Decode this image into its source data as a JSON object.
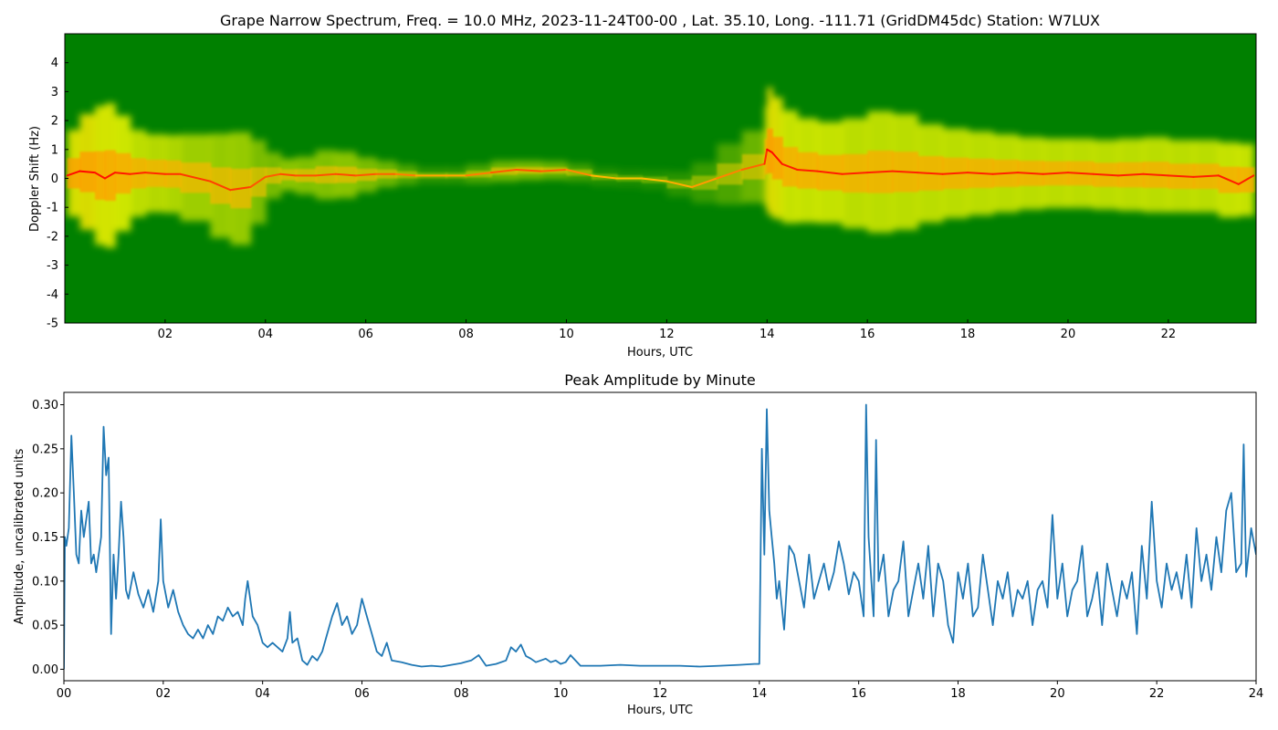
{
  "chart_data": [
    {
      "type": "heatmap",
      "title": "Grape Narrow Spectrum, Freq. = 10.0 MHz, 2023-11-24T00-00 , Lat.  35.10, Long. -111.71 (GridDM45dc) Station: W7LUX",
      "xlabel": "Hours, UTC",
      "ylabel": "Doppler Shift (Hz)",
      "xlim": [
        0,
        23.75
      ],
      "ylim": [
        -5,
        5
      ],
      "x_ticks": [
        2,
        4,
        6,
        8,
        10,
        12,
        14,
        16,
        18,
        20,
        22
      ],
      "x_tick_labels": [
        "02",
        "04",
        "06",
        "08",
        "10",
        "12",
        "14",
        "16",
        "18",
        "20",
        "22"
      ],
      "y_ticks": [
        -5,
        -4,
        -3,
        -2,
        -1,
        0,
        1,
        2,
        3,
        4
      ],
      "y_tick_labels": [
        "-5",
        "-4",
        "-3",
        "-2",
        "-1",
        "0",
        "1",
        "2",
        "3",
        "4"
      ],
      "colormap": [
        "#008000",
        "#ffff00",
        "#ff0000"
      ],
      "background_color": "#008000",
      "tone_trace": {
        "x": [
          0.05,
          0.3,
          0.6,
          0.8,
          1.0,
          1.3,
          1.6,
          2.0,
          2.3,
          2.9,
          3.3,
          3.7,
          4.0,
          4.3,
          4.6,
          5.0,
          5.4,
          5.8,
          6.2,
          6.6,
          7.0,
          7.6,
          8.0,
          8.5,
          9.0,
          9.5,
          10.0,
          10.5,
          11.0,
          11.5,
          12.0,
          12.5,
          13.0,
          13.5,
          13.95,
          14.0,
          14.1,
          14.3,
          14.6,
          15.0,
          15.5,
          16.0,
          16.5,
          17.0,
          17.5,
          18.0,
          18.5,
          19.0,
          19.5,
          20.0,
          20.5,
          21.0,
          21.5,
          22.0,
          22.5,
          23.0,
          23.4,
          23.7
        ],
        "y": [
          0.1,
          0.25,
          0.2,
          0.0,
          0.2,
          0.15,
          0.2,
          0.15,
          0.15,
          -0.1,
          -0.4,
          -0.3,
          0.05,
          0.15,
          0.1,
          0.1,
          0.15,
          0.1,
          0.15,
          0.15,
          0.1,
          0.1,
          0.1,
          0.2,
          0.3,
          0.25,
          0.3,
          0.1,
          0.0,
          0.0,
          -0.1,
          -0.3,
          0.0,
          0.3,
          0.5,
          1.0,
          0.9,
          0.5,
          0.3,
          0.25,
          0.15,
          0.2,
          0.25,
          0.2,
          0.15,
          0.2,
          0.15,
          0.2,
          0.15,
          0.2,
          0.15,
          0.1,
          0.15,
          0.1,
          0.05,
          0.1,
          -0.2,
          0.1
        ],
        "intensity": [
          0.9,
          1.0,
          0.95,
          0.9,
          0.95,
          0.85,
          0.85,
          0.8,
          0.8,
          0.7,
          0.75,
          0.7,
          0.55,
          0.65,
          0.7,
          0.6,
          0.7,
          0.65,
          0.6,
          0.55,
          0.35,
          0.2,
          0.35,
          0.55,
          0.65,
          0.6,
          0.55,
          0.25,
          0.15,
          0.15,
          0.2,
          0.3,
          0.35,
          0.5,
          0.6,
          1.0,
          1.0,
          0.9,
          0.85,
          0.9,
          0.85,
          0.85,
          0.85,
          0.85,
          0.85,
          0.85,
          0.85,
          0.85,
          0.85,
          0.85,
          0.85,
          0.85,
          0.85,
          0.85,
          0.85,
          0.85,
          0.9,
          0.85
        ],
        "spread_hz": [
          1.2,
          1.8,
          2.2,
          2.6,
          2.4,
          1.6,
          1.4,
          1.3,
          1.4,
          1.6,
          2.0,
          1.9,
          1.0,
          0.6,
          0.5,
          0.8,
          0.9,
          0.7,
          0.5,
          0.4,
          0.3,
          0.25,
          0.3,
          0.35,
          0.35,
          0.3,
          0.3,
          0.3,
          0.3,
          0.3,
          0.35,
          0.5,
          0.9,
          1.2,
          1.3,
          2.2,
          2.2,
          2.0,
          1.9,
          1.7,
          1.8,
          2.0,
          2.2,
          1.8,
          1.6,
          1.5,
          1.4,
          1.3,
          1.2,
          1.2,
          1.2,
          1.2,
          1.3,
          1.3,
          1.2,
          1.3,
          1.3,
          1.2
        ]
      }
    },
    {
      "type": "line",
      "title": "Peak Amplitude by Minute",
      "xlabel": "Hours, UTC",
      "ylabel": "Amplitude, uncalibrated units",
      "xlim": [
        0,
        24
      ],
      "ylim": [
        -0.013,
        0.314
      ],
      "x_ticks": [
        0,
        2,
        4,
        6,
        8,
        10,
        12,
        14,
        16,
        18,
        20,
        22,
        24
      ],
      "x_tick_labels": [
        "00",
        "02",
        "04",
        "06",
        "08",
        "10",
        "12",
        "14",
        "16",
        "18",
        "20",
        "22",
        "24"
      ],
      "y_ticks": [
        0.0,
        0.05,
        0.1,
        0.15,
        0.2,
        0.25,
        0.3
      ],
      "y_tick_labels": [
        "0.00",
        "0.05",
        "0.10",
        "0.15",
        "0.20",
        "0.25",
        "0.30"
      ],
      "line_color": "#1f77b4",
      "series": [
        {
          "x": [
            0.0,
            0.02,
            0.05,
            0.1,
            0.15,
            0.2,
            0.25,
            0.3,
            0.35,
            0.4,
            0.45,
            0.5,
            0.55,
            0.6,
            0.65,
            0.7,
            0.75,
            0.8,
            0.85,
            0.9,
            0.95,
            1.0,
            1.05,
            1.1,
            1.15,
            1.2,
            1.25,
            1.3,
            1.4,
            1.5,
            1.6,
            1.7,
            1.8,
            1.9,
            1.95,
            2.0,
            2.1,
            2.2,
            2.3,
            2.4,
            2.5,
            2.6,
            2.7,
            2.8,
            2.9,
            3.0,
            3.1,
            3.2,
            3.3,
            3.4,
            3.5,
            3.6,
            3.65,
            3.7,
            3.8,
            3.9,
            4.0,
            4.1,
            4.2,
            4.3,
            4.4,
            4.5,
            4.55,
            4.6,
            4.7,
            4.8,
            4.9,
            5.0,
            5.1,
            5.2,
            5.3,
            5.4,
            5.5,
            5.6,
            5.7,
            5.8,
            5.9,
            6.0,
            6.1,
            6.2,
            6.3,
            6.4,
            6.5,
            6.6,
            6.8,
            7.0,
            7.2,
            7.4,
            7.6,
            7.8,
            8.0,
            8.2,
            8.35,
            8.5,
            8.7,
            8.9,
            9.0,
            9.1,
            9.2,
            9.3,
            9.4,
            9.5,
            9.6,
            9.7,
            9.8,
            9.9,
            10.0,
            10.1,
            10.2,
            10.4,
            10.8,
            11.2,
            11.6,
            12.0,
            12.4,
            12.8,
            13.2,
            13.6,
            13.9,
            14.0,
            14.05,
            14.1,
            14.15,
            14.2,
            14.25,
            14.3,
            14.35,
            14.4,
            14.5,
            14.6,
            14.7,
            14.8,
            14.9,
            15.0,
            15.1,
            15.2,
            15.3,
            15.4,
            15.5,
            15.6,
            15.7,
            15.8,
            15.9,
            16.0,
            16.1,
            16.15,
            16.2,
            16.3,
            16.35,
            16.4,
            16.5,
            16.6,
            16.7,
            16.8,
            16.9,
            17.0,
            17.1,
            17.2,
            17.3,
            17.4,
            17.5,
            17.6,
            17.7,
            17.8,
            17.9,
            18.0,
            18.1,
            18.2,
            18.3,
            18.4,
            18.5,
            18.6,
            18.7,
            18.8,
            18.9,
            19.0,
            19.1,
            19.2,
            19.3,
            19.4,
            19.5,
            19.6,
            19.7,
            19.8,
            19.9,
            20.0,
            20.1,
            20.2,
            20.3,
            20.4,
            20.5,
            20.6,
            20.7,
            20.8,
            20.9,
            21.0,
            21.1,
            21.2,
            21.3,
            21.4,
            21.5,
            21.6,
            21.7,
            21.8,
            21.9,
            22.0,
            22.1,
            22.2,
            22.3,
            22.4,
            22.5,
            22.6,
            22.7,
            22.8,
            22.9,
            23.0,
            23.1,
            23.2,
            23.3,
            23.4,
            23.5,
            23.6,
            23.7,
            23.75,
            23.8,
            23.9,
            24.0
          ],
          "values": [
            0.0,
            0.15,
            0.14,
            0.16,
            0.265,
            0.2,
            0.13,
            0.12,
            0.18,
            0.15,
            0.17,
            0.19,
            0.12,
            0.13,
            0.11,
            0.13,
            0.15,
            0.275,
            0.22,
            0.24,
            0.04,
            0.13,
            0.08,
            0.13,
            0.19,
            0.15,
            0.09,
            0.08,
            0.11,
            0.085,
            0.07,
            0.09,
            0.065,
            0.1,
            0.17,
            0.1,
            0.07,
            0.09,
            0.065,
            0.05,
            0.04,
            0.035,
            0.045,
            0.035,
            0.05,
            0.04,
            0.06,
            0.055,
            0.07,
            0.06,
            0.065,
            0.05,
            0.08,
            0.1,
            0.06,
            0.05,
            0.03,
            0.025,
            0.03,
            0.025,
            0.02,
            0.035,
            0.065,
            0.03,
            0.035,
            0.01,
            0.005,
            0.015,
            0.01,
            0.02,
            0.04,
            0.06,
            0.075,
            0.05,
            0.06,
            0.04,
            0.05,
            0.08,
            0.06,
            0.04,
            0.02,
            0.015,
            0.03,
            0.01,
            0.008,
            0.005,
            0.003,
            0.004,
            0.003,
            0.005,
            0.007,
            0.01,
            0.016,
            0.004,
            0.006,
            0.01,
            0.025,
            0.02,
            0.028,
            0.015,
            0.012,
            0.008,
            0.01,
            0.012,
            0.008,
            0.01,
            0.006,
            0.008,
            0.016,
            0.004,
            0.004,
            0.005,
            0.004,
            0.004,
            0.004,
            0.003,
            0.004,
            0.005,
            0.006,
            0.006,
            0.25,
            0.13,
            0.295,
            0.18,
            0.15,
            0.12,
            0.08,
            0.1,
            0.045,
            0.14,
            0.13,
            0.1,
            0.07,
            0.13,
            0.08,
            0.1,
            0.12,
            0.09,
            0.11,
            0.145,
            0.12,
            0.085,
            0.11,
            0.1,
            0.06,
            0.3,
            0.15,
            0.06,
            0.26,
            0.1,
            0.13,
            0.06,
            0.09,
            0.1,
            0.145,
            0.06,
            0.09,
            0.12,
            0.08,
            0.14,
            0.06,
            0.12,
            0.1,
            0.05,
            0.03,
            0.11,
            0.08,
            0.12,
            0.06,
            0.07,
            0.13,
            0.09,
            0.05,
            0.1,
            0.08,
            0.11,
            0.06,
            0.09,
            0.08,
            0.1,
            0.05,
            0.09,
            0.1,
            0.07,
            0.175,
            0.08,
            0.12,
            0.06,
            0.09,
            0.1,
            0.14,
            0.06,
            0.08,
            0.11,
            0.05,
            0.12,
            0.09,
            0.06,
            0.1,
            0.08,
            0.11,
            0.04,
            0.14,
            0.08,
            0.19,
            0.1,
            0.07,
            0.12,
            0.09,
            0.11,
            0.08,
            0.13,
            0.07,
            0.16,
            0.1,
            0.13,
            0.09,
            0.15,
            0.11,
            0.18,
            0.2,
            0.11,
            0.12,
            0.255,
            0.105,
            0.16,
            0.13
          ]
        }
      ]
    }
  ]
}
